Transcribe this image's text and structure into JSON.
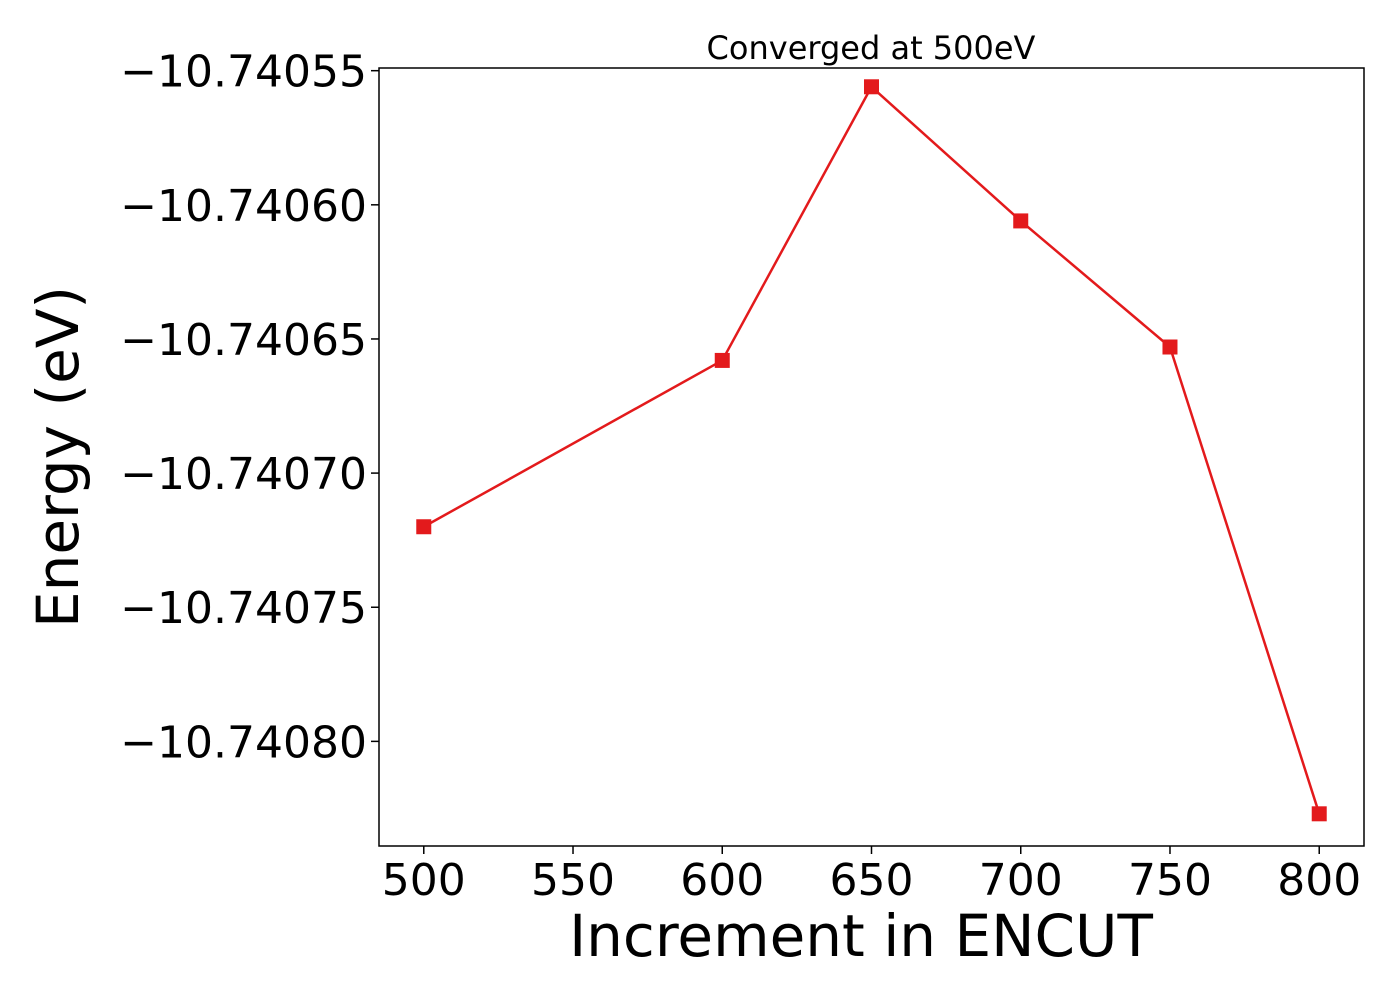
{
  "chart_data": {
    "type": "line",
    "title": "Converged at 500eV",
    "xlabel": "Increment in ENCUT",
    "ylabel": "Energy (eV)",
    "x": [
      500,
      600,
      650,
      700,
      750,
      800
    ],
    "series": [
      {
        "values": [
          -10.74072,
          -10.740658,
          -10.740556,
          -10.740606,
          -10.740653,
          -10.740827
        ],
        "color": "#e31a1c",
        "marker": "square"
      }
    ],
    "xlim": [
      485,
      815
    ],
    "ylim": [
      -10.740839,
      -10.740549
    ],
    "xticks": [
      500,
      550,
      600,
      650,
      700,
      750,
      800
    ],
    "xtick_labels": [
      "500",
      "550",
      "600",
      "650",
      "700",
      "750",
      "800"
    ],
    "yticks": [
      -10.7408,
      -10.74075,
      -10.7407,
      -10.74065,
      -10.7406,
      -10.74055
    ],
    "ytick_labels": [
      "−10.74080",
      "−10.74075",
      "−10.74070",
      "−10.74065",
      "−10.74060",
      "−10.74055"
    ],
    "grid": false,
    "legend": "none"
  }
}
